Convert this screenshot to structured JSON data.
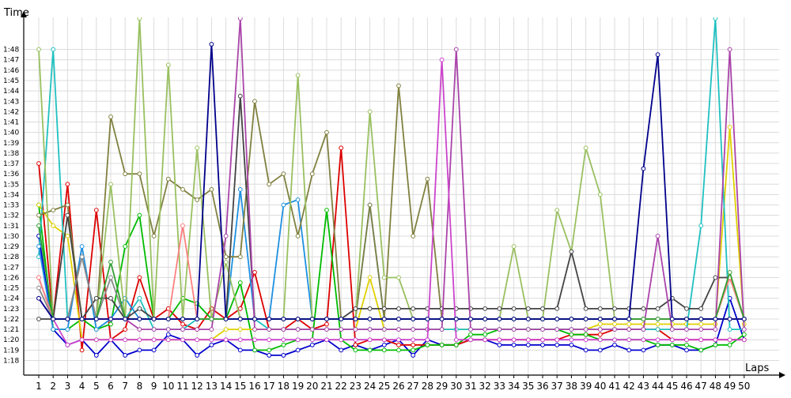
{
  "chart_data": {
    "type": "line",
    "ylabel": "Time",
    "xlabel": "Laps",
    "x": [
      1,
      2,
      3,
      4,
      5,
      6,
      7,
      8,
      9,
      10,
      11,
      12,
      13,
      14,
      15,
      16,
      17,
      18,
      19,
      20,
      21,
      22,
      23,
      24,
      25,
      26,
      27,
      28,
      29,
      30,
      31,
      32,
      33,
      34,
      35,
      36,
      37,
      38,
      39,
      40,
      41,
      42,
      43,
      44,
      45,
      46,
      47,
      48,
      49,
      50
    ],
    "x_ticks": [
      "1",
      "2",
      "3",
      "4",
      "5",
      "6",
      "7",
      "8",
      "9",
      "10",
      "11",
      "12",
      "13",
      "14",
      "15",
      "16",
      "17",
      "18",
      "19",
      "20",
      "21",
      "22",
      "23",
      "24",
      "25",
      "26",
      "27",
      "28",
      "29",
      "30",
      "31",
      "32",
      "33",
      "34",
      "35",
      "36",
      "37",
      "38",
      "39",
      "40",
      "41",
      "42",
      "43",
      "44",
      "45",
      "46",
      "47",
      "48",
      "49",
      "50"
    ],
    "y_unit": "seconds",
    "ylim": [
      77,
      111
    ],
    "y_ticks": [
      {
        "v": 78,
        "label": "1:18"
      },
      {
        "v": 79,
        "label": "1:19"
      },
      {
        "v": 80,
        "label": "1:20"
      },
      {
        "v": 81,
        "label": "1:21"
      },
      {
        "v": 82,
        "label": "1:22"
      },
      {
        "v": 83,
        "label": "1:23"
      },
      {
        "v": 84,
        "label": "1:24"
      },
      {
        "v": 85,
        "label": "1:25"
      },
      {
        "v": 86,
        "label": "1:26"
      },
      {
        "v": 87,
        "label": "1:27"
      },
      {
        "v": 88,
        "label": "1:28"
      },
      {
        "v": 89,
        "label": "1:29"
      },
      {
        "v": 90,
        "label": "1:30"
      },
      {
        "v": 91,
        "label": "1:31"
      },
      {
        "v": 92,
        "label": "1:32"
      },
      {
        "v": 93,
        "label": "1:33"
      },
      {
        "v": 94,
        "label": "1:34"
      },
      {
        "v": 95,
        "label": "1:35"
      },
      {
        "v": 96,
        "label": "1:36"
      },
      {
        "v": 97,
        "label": "1:37"
      },
      {
        "v": 98,
        "label": "1:38"
      },
      {
        "v": 99,
        "label": "1:39"
      },
      {
        "v": 100,
        "label": "1:40"
      },
      {
        "v": 101,
        "label": "1:41"
      },
      {
        "v": 102,
        "label": "1:42"
      },
      {
        "v": 103,
        "label": "1:43"
      },
      {
        "v": 104,
        "label": "1:44"
      },
      {
        "v": 105,
        "label": "1:45"
      },
      {
        "v": 106,
        "label": "1:46"
      },
      {
        "v": 107,
        "label": "1:47"
      },
      {
        "v": 108,
        "label": "1:48"
      }
    ],
    "grid": true,
    "legend": "none",
    "series": [
      {
        "color": "#0000cc",
        "values": [
          90,
          81,
          79.5,
          80,
          78.5,
          80,
          78.5,
          79,
          79,
          80.5,
          80,
          78.5,
          79.5,
          80,
          79,
          79,
          78.5,
          78.5,
          79,
          79.5,
          80,
          79,
          79.5,
          79,
          79.5,
          80,
          78.5,
          80,
          79.5,
          79.5,
          80,
          80,
          79.5,
          79.5,
          79.5,
          79.5,
          79.5,
          79.5,
          79,
          79,
          79.5,
          79,
          79,
          79.5,
          79.5,
          79,
          79,
          79.5,
          84,
          80
        ]
      },
      {
        "color": "#dd0000",
        "values": [
          97,
          82,
          95,
          79,
          92.5,
          80,
          81,
          86,
          82,
          83,
          81.5,
          81,
          83,
          82,
          83,
          86.5,
          81,
          81,
          82,
          81,
          81.5,
          98.5,
          79.5,
          80,
          80,
          79.5,
          79.5,
          79.5,
          79.5,
          79.5,
          80,
          80,
          80,
          80,
          80,
          80,
          80,
          80.5,
          80.5,
          80.5,
          81,
          81,
          81,
          81,
          80,
          80,
          80,
          80,
          80,
          80
        ]
      },
      {
        "color": "#00bb00",
        "values": [
          93,
          81,
          81,
          82,
          81,
          81.5,
          89,
          92,
          82,
          82,
          84,
          83.5,
          82,
          82,
          85.5,
          79,
          79,
          79.5,
          80,
          80,
          92.5,
          80,
          79,
          79,
          79,
          79,
          79,
          79.5,
          79.5,
          79.5,
          80.5,
          80.5,
          81,
          81,
          81,
          81,
          81,
          80.5,
          80.5,
          80,
          80,
          80,
          80,
          79.5,
          79.5,
          79.5,
          79,
          79.5,
          79.5,
          80.5
        ]
      },
      {
        "color": "#e0d000",
        "values": [
          93,
          91,
          90,
          80,
          80,
          80,
          80,
          80,
          80,
          80,
          80,
          80,
          80,
          81,
          81,
          81,
          81,
          81,
          81,
          81,
          81,
          81,
          81,
          86,
          81,
          81,
          81,
          81,
          81,
          81,
          81,
          81,
          81,
          81,
          81,
          81,
          81,
          81,
          81,
          81.5,
          81.5,
          81.5,
          81.5,
          81.5,
          81.5,
          81.5,
          81.5,
          81.5,
          100.5,
          81.5
        ]
      },
      {
        "color": "#20c0c0",
        "values": [
          88,
          108,
          82,
          82,
          82,
          82,
          82,
          84,
          81,
          81,
          81,
          82,
          82,
          82,
          82,
          82,
          81,
          81,
          81,
          81,
          81,
          81,
          81,
          81,
          81,
          81,
          81,
          81,
          81,
          81,
          81,
          81,
          81,
          81,
          81,
          81,
          81,
          81,
          81,
          81,
          81,
          81,
          81,
          81,
          81,
          81,
          91,
          111,
          81,
          81
        ]
      },
      {
        "color": "#1e90e0",
        "values": [
          89,
          81,
          81,
          89,
          81,
          82,
          84,
          82,
          82,
          82,
          82,
          82,
          82,
          82,
          94.5,
          82,
          82,
          93,
          93.5,
          82,
          82,
          82,
          82,
          93,
          82,
          82,
          82,
          82,
          82,
          82,
          82,
          82,
          82,
          82,
          82,
          82,
          82,
          82,
          82,
          82,
          82,
          82,
          82,
          82,
          82,
          82,
          82,
          82,
          82,
          82
        ]
      },
      {
        "color": "#808040",
        "values": [
          92,
          92.5,
          93,
          82,
          82,
          101.5,
          96,
          96,
          90,
          95.5,
          94.5,
          93.5,
          94.5,
          88,
          88,
          103,
          95,
          96,
          90,
          96,
          100,
          82,
          82,
          93,
          82,
          104.5,
          90,
          95.5,
          82,
          82,
          82,
          82,
          82,
          82,
          82,
          82,
          82,
          82,
          82,
          82,
          82,
          82,
          82,
          82,
          82,
          82,
          82,
          82,
          82,
          82
        ]
      },
      {
        "color": "#99c060",
        "values": [
          108,
          82,
          82,
          82,
          82,
          95,
          82,
          111,
          82,
          106.5,
          82,
          98.5,
          82,
          87.5,
          82,
          82,
          82,
          82,
          105.5,
          82,
          82,
          82,
          82,
          102,
          86,
          86,
          82,
          82,
          82,
          82,
          82,
          82,
          82,
          89,
          82,
          82,
          92.5,
          88.5,
          98.5,
          94,
          82,
          82,
          82,
          82,
          82,
          82,
          82,
          82,
          82,
          82
        ]
      },
      {
        "color": "#444444",
        "values": [
          82,
          82,
          92,
          82,
          84,
          84,
          82,
          83,
          82,
          82,
          82,
          82,
          82,
          82,
          103.5,
          82,
          82,
          82,
          82,
          82,
          82,
          82,
          83,
          83,
          83,
          83,
          83,
          83,
          83,
          83,
          83,
          83,
          83,
          83,
          83,
          83,
          83,
          88.5,
          83,
          83,
          83,
          83,
          83,
          83,
          84,
          83,
          83,
          86,
          86,
          82
        ]
      },
      {
        "color": "#aa44aa",
        "values": [
          86,
          82,
          82,
          82,
          82,
          82,
          82,
          81,
          81,
          81,
          81,
          81,
          81,
          90,
          111,
          81,
          81,
          81,
          81,
          81,
          81,
          81,
          81,
          81,
          81,
          81,
          81,
          81,
          81,
          108,
          81,
          81,
          81,
          81,
          81,
          81,
          81,
          81,
          81,
          81,
          81,
          81,
          81,
          90,
          81,
          81,
          81,
          81,
          108,
          81
        ]
      },
      {
        "color": "#cc44cc",
        "values": [
          84,
          82,
          79.5,
          80,
          80,
          80,
          80,
          80,
          80,
          80,
          80,
          80,
          80,
          80,
          80,
          80,
          80,
          80,
          80,
          80,
          80,
          80,
          80,
          80,
          80,
          80,
          80,
          80,
          107,
          80,
          80,
          80,
          80,
          80,
          80,
          80,
          80,
          80,
          80,
          80,
          80,
          80,
          80,
          80,
          80,
          80,
          80,
          80,
          80,
          80
        ]
      },
      {
        "color": "#ff8080",
        "values": [
          86,
          82,
          82,
          82,
          82,
          82,
          82,
          82,
          82,
          82,
          91,
          82,
          82,
          82,
          82,
          82,
          82,
          82,
          82,
          82,
          82,
          82,
          82,
          82,
          82,
          82,
          82,
          82,
          82,
          82,
          82,
          82,
          82,
          82,
          82,
          82,
          82,
          82,
          82,
          82,
          82,
          82,
          82,
          82,
          82,
          82,
          82,
          82,
          86,
          82
        ]
      },
      {
        "color": "#888888",
        "values": [
          85,
          82,
          82,
          88,
          82,
          86,
          82,
          82,
          82,
          82,
          82,
          82,
          82,
          82,
          82,
          82,
          82,
          82,
          82,
          82,
          82,
          82,
          82,
          82,
          82,
          82,
          82,
          82,
          82,
          82,
          82,
          82,
          82,
          82,
          82,
          82,
          82,
          82,
          82,
          82,
          82,
          82,
          82,
          82,
          82,
          82,
          82,
          82,
          82,
          82
        ]
      },
      {
        "color": "#30a030",
        "values": [
          91,
          82,
          82,
          82,
          82,
          87.5,
          82,
          82,
          82,
          82,
          82,
          82,
          82,
          82,
          82,
          82,
          82,
          82,
          82,
          82,
          82,
          82,
          82,
          82,
          82,
          82,
          82,
          82,
          82,
          82,
          82,
          82,
          82,
          82,
          82,
          82,
          82,
          82,
          82,
          82,
          82,
          82,
          82,
          82,
          82,
          82,
          82,
          82,
          86.5,
          82
        ]
      },
      {
        "color": "#00008b",
        "values": [
          84,
          82,
          82,
          82,
          82,
          82,
          82,
          82,
          82,
          82,
          82,
          82,
          108.5,
          82,
          82,
          82,
          82,
          82,
          82,
          82,
          82,
          82,
          82,
          82,
          82,
          82,
          82,
          82,
          82,
          82,
          82,
          82,
          82,
          82,
          82,
          82,
          82,
          82,
          82,
          82,
          82,
          82,
          96.5,
          107.5,
          82,
          82,
          82,
          82,
          82,
          82
        ]
      }
    ]
  }
}
